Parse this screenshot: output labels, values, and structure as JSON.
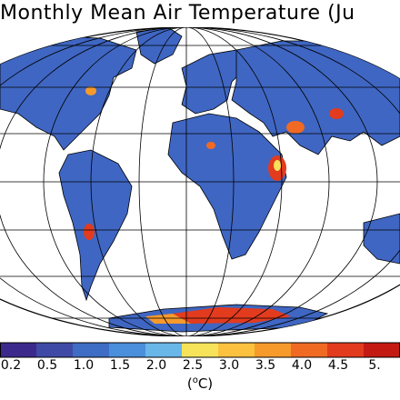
{
  "title": "Monthly Mean Air Temperature (Ju",
  "colorbar": {
    "ticks": [
      "0.2",
      "0.5",
      "1.0",
      "1.5",
      "2.0",
      "2.5",
      "3.0",
      "3.5",
      "4.0",
      "4.5",
      "5."
    ],
    "colors": [
      "#3b2a8c",
      "#3f4aa6",
      "#3f6cc4",
      "#4a8fdc",
      "#69b6e8",
      "#f6e35a",
      "#fbc13f",
      "#f79a2c",
      "#f06a24",
      "#e23b1e",
      "#c41a14"
    ],
    "units_prefix": "(",
    "units_sup": "o",
    "units_suffix": "C)"
  },
  "colors": {
    "ocean": "#ffffff",
    "land_base": "#3f66c2",
    "land_dark": "#3a3f99",
    "graticule": "#000000"
  }
}
